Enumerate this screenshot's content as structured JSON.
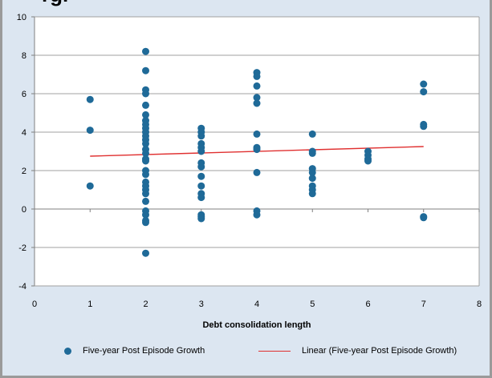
{
  "title_fragment": "rgr",
  "colors": {
    "background": "#dce6f1",
    "plot_background": "#ffffff",
    "points": "#1f6a98",
    "trendline": "#e03030",
    "grid": "#a0a0a0"
  },
  "chart_data": {
    "type": "scatter",
    "title": "",
    "xlabel": "Debt consolidation  length",
    "ylabel": "",
    "xlim": [
      0,
      8
    ],
    "ylim": [
      -4,
      10
    ],
    "x_ticks": [
      "0",
      "1",
      "2",
      "3",
      "4",
      "5",
      "6",
      "7",
      "8"
    ],
    "y_ticks": [
      "-4",
      "-2",
      "0",
      "2",
      "4",
      "6",
      "8",
      "10"
    ],
    "grid": "horizontal major gridlines",
    "legend_position": "bottom",
    "series": [
      {
        "name": "Five-year Post Episode  Growth",
        "marker": "circle",
        "points": [
          [
            1,
            5.7
          ],
          [
            1,
            4.1
          ],
          [
            1,
            1.2
          ],
          [
            2,
            8.2
          ],
          [
            2,
            7.2
          ],
          [
            2,
            6.2
          ],
          [
            2,
            6.0
          ],
          [
            2,
            5.4
          ],
          [
            2,
            4.9
          ],
          [
            2,
            4.6
          ],
          [
            2,
            4.4
          ],
          [
            2,
            4.2
          ],
          [
            2,
            4.0
          ],
          [
            2,
            3.8
          ],
          [
            2,
            3.6
          ],
          [
            2,
            3.4
          ],
          [
            2,
            3.1
          ],
          [
            2,
            2.9
          ],
          [
            2,
            2.6
          ],
          [
            2,
            2.5
          ],
          [
            2,
            2.0
          ],
          [
            2,
            1.8
          ],
          [
            2,
            1.4
          ],
          [
            2,
            1.2
          ],
          [
            2,
            1.0
          ],
          [
            2,
            0.8
          ],
          [
            2,
            0.4
          ],
          [
            2,
            -0.1
          ],
          [
            2,
            -0.3
          ],
          [
            2,
            -0.6
          ],
          [
            2,
            -0.7
          ],
          [
            2,
            -2.3
          ],
          [
            3,
            4.2
          ],
          [
            3,
            4.0
          ],
          [
            3,
            3.8
          ],
          [
            3,
            3.4
          ],
          [
            3,
            3.2
          ],
          [
            3,
            3.0
          ],
          [
            3,
            2.4
          ],
          [
            3,
            2.2
          ],
          [
            3,
            1.7
          ],
          [
            3,
            1.2
          ],
          [
            3,
            0.8
          ],
          [
            3,
            0.6
          ],
          [
            3,
            -0.3
          ],
          [
            3,
            -0.4
          ],
          [
            3,
            -0.5
          ],
          [
            4,
            7.1
          ],
          [
            4,
            6.9
          ],
          [
            4,
            6.4
          ],
          [
            4,
            5.8
          ],
          [
            4,
            5.5
          ],
          [
            4,
            3.9
          ],
          [
            4,
            3.2
          ],
          [
            4,
            3.1
          ],
          [
            4,
            1.9
          ],
          [
            4,
            -0.1
          ],
          [
            4,
            -0.3
          ],
          [
            5,
            3.9
          ],
          [
            5,
            3.0
          ],
          [
            5,
            2.9
          ],
          [
            5,
            2.1
          ],
          [
            5,
            1.9
          ],
          [
            5,
            1.6
          ],
          [
            5,
            1.2
          ],
          [
            5,
            1.0
          ],
          [
            5,
            0.8
          ],
          [
            6,
            3.0
          ],
          [
            6,
            2.8
          ],
          [
            6,
            2.6
          ],
          [
            6,
            2.5
          ],
          [
            7,
            6.5
          ],
          [
            7,
            6.1
          ],
          [
            7,
            4.4
          ],
          [
            7,
            4.3
          ],
          [
            7,
            -0.4
          ],
          [
            7,
            -0.45
          ]
        ]
      },
      {
        "name": "Linear (Five-year Post Episode  Growth)",
        "marker": "line",
        "points": [
          [
            1,
            2.75
          ],
          [
            7,
            3.25
          ]
        ]
      }
    ]
  }
}
